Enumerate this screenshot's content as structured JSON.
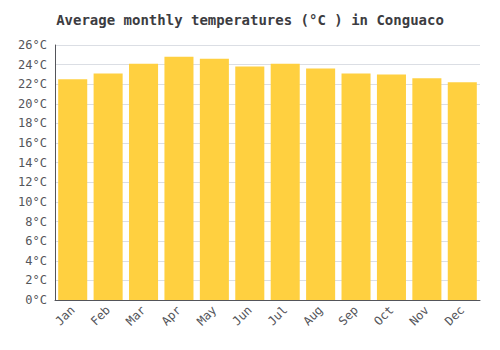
{
  "chart_data": {
    "type": "bar",
    "title": "Average monthly temperatures (°C ) in Conguaco",
    "categories": [
      "Jan",
      "Feb",
      "Mar",
      "Apr",
      "May",
      "Jun",
      "Jul",
      "Aug",
      "Sep",
      "Oct",
      "Nov",
      "Dec"
    ],
    "values": [
      22.5,
      23.1,
      24.1,
      24.8,
      24.6,
      23.8,
      24.1,
      23.6,
      23.1,
      23.0,
      22.6,
      22.2
    ],
    "color": "#FFD040",
    "ylim": [
      0,
      26
    ],
    "yticks": [
      {
        "value": 0,
        "label": "0°C"
      },
      {
        "value": 2,
        "label": "2°C"
      },
      {
        "value": 4,
        "label": "4°C"
      },
      {
        "value": 6,
        "label": "6°C"
      },
      {
        "value": 8,
        "label": "8°C"
      },
      {
        "value": 10,
        "label": "10°C"
      },
      {
        "value": 12,
        "label": "12°C"
      },
      {
        "value": 14,
        "label": "14°C"
      },
      {
        "value": 16,
        "label": "16°C"
      },
      {
        "value": 18,
        "label": "18°C"
      },
      {
        "value": 20,
        "label": "20°C"
      },
      {
        "value": 22,
        "label": "22°C"
      },
      {
        "value": 24,
        "label": "24°C"
      },
      {
        "value": 26,
        "label": "26°C"
      }
    ],
    "grid": true
  }
}
